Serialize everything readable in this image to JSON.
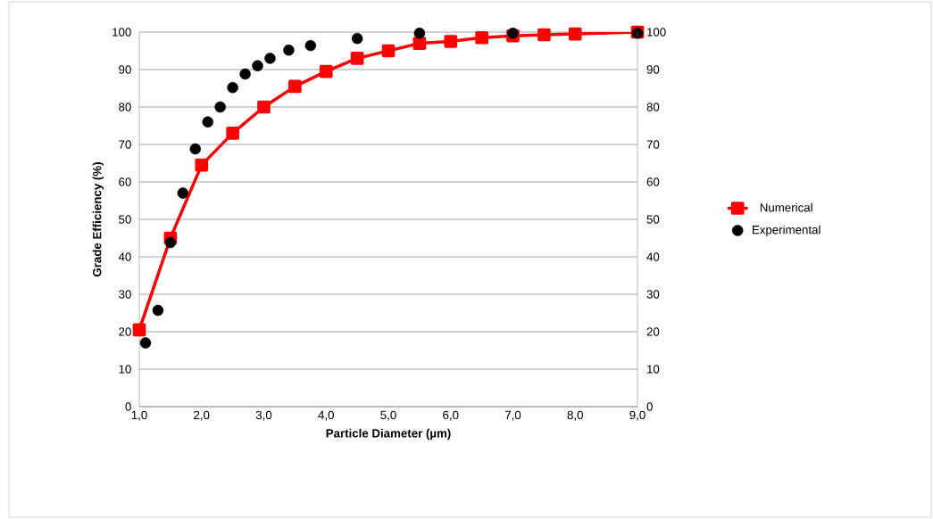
{
  "chart_data": {
    "type": "line",
    "xlabel": "Particle Diameter (µm)",
    "ylabel": "Grade Efficiency (%)",
    "xlim": [
      1,
      9
    ],
    "xticks": [
      {
        "value": 1,
        "label": "1,0"
      },
      {
        "value": 2,
        "label": "2,0"
      },
      {
        "value": 3,
        "label": "3,0"
      },
      {
        "value": 4,
        "label": "4,0"
      },
      {
        "value": 5,
        "label": "5,0"
      },
      {
        "value": 6,
        "label": "6,0"
      },
      {
        "value": 7,
        "label": "7,0"
      },
      {
        "value": 8,
        "label": "8,0"
      },
      {
        "value": 9,
        "label": "9,0"
      }
    ],
    "ylim": [
      0,
      100
    ],
    "yticks": [
      0,
      10,
      20,
      30,
      40,
      50,
      60,
      70,
      80,
      90,
      100
    ],
    "y2lim": [
      0,
      100
    ],
    "y2ticks": [
      0,
      10,
      20,
      30,
      40,
      50,
      60,
      70,
      80,
      90,
      100
    ],
    "grid": "y",
    "legend": "right",
    "series": [
      {
        "name": "Numerical",
        "marker": "square",
        "color": "#ff0000",
        "x": [
          1.0,
          1.5,
          2.0,
          2.5,
          3.0,
          3.5,
          4.0,
          4.5,
          5.0,
          5.5,
          6.0,
          6.5,
          7.0,
          7.5,
          8.0,
          9.0
        ],
        "values": [
          20.5,
          45,
          64.5,
          73,
          80,
          85.5,
          89.5,
          93,
          95,
          97,
          97.5,
          98.5,
          99,
          99.3,
          99.5,
          100
        ]
      },
      {
        "name": "Experimental",
        "type": "scatter",
        "marker": "circle",
        "color": "#000000",
        "x": [
          1.1,
          1.3,
          1.5,
          1.7,
          1.9,
          2.1,
          2.3,
          2.5,
          2.7,
          2.9,
          3.1,
          3.4,
          3.75,
          4.5,
          5.5,
          7.0,
          9.0
        ],
        "values": [
          17,
          25.7,
          43.8,
          57,
          68.8,
          76,
          80,
          85.2,
          88.8,
          91,
          93,
          95.2,
          96.4,
          98.3,
          99.7,
          99.7,
          99.7
        ]
      }
    ]
  }
}
